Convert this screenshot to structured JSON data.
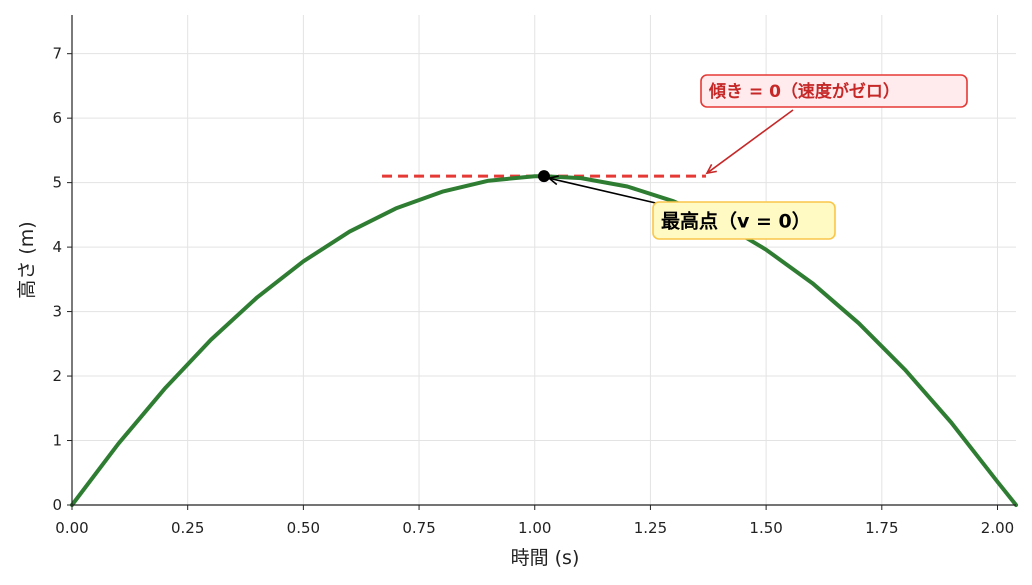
{
  "chart_data": {
    "type": "line",
    "xlabel": "時間 (s)",
    "ylabel": "高さ (m)",
    "xlim": [
      0,
      2.04
    ],
    "ylim": [
      0,
      7.6
    ],
    "xticks": [
      0.0,
      0.25,
      0.5,
      0.75,
      1.0,
      1.25,
      1.5,
      1.75,
      2.0
    ],
    "xtick_labels": [
      "0.00",
      "0.25",
      "0.50",
      "0.75",
      "1.00",
      "1.25",
      "1.50",
      "1.75",
      "2.00"
    ],
    "yticks": [
      0,
      1,
      2,
      3,
      4,
      5,
      6,
      7
    ],
    "ytick_labels": [
      "0",
      "1",
      "2",
      "3",
      "4",
      "5",
      "6",
      "7"
    ],
    "grid": true,
    "series": [
      {
        "color": "#2e7d32",
        "x": [
          0.0,
          0.1,
          0.2,
          0.3,
          0.4,
          0.5,
          0.6,
          0.7,
          0.8,
          0.9,
          1.0,
          1.02,
          1.1,
          1.2,
          1.3,
          1.4,
          1.5,
          1.6,
          1.7,
          1.8,
          1.9,
          2.0,
          2.04
        ],
        "y": [
          0.0,
          0.95,
          1.8,
          2.56,
          3.22,
          3.78,
          4.24,
          4.6,
          4.86,
          5.03,
          5.1,
          5.1,
          5.07,
          4.94,
          4.71,
          4.39,
          3.96,
          3.44,
          2.82,
          2.1,
          1.28,
          0.36,
          0.0
        ]
      }
    ],
    "peak": {
      "x": 1.02,
      "y": 5.1,
      "color": "#000000"
    },
    "tangent": {
      "x": [
        0.67,
        1.37
      ],
      "y": 5.1,
      "color": "#e53935"
    },
    "annotations": [
      {
        "text": "最高点（v = 0）",
        "text_color": "#000000",
        "fill": "#fff9c4",
        "border": "#f9c64a",
        "arrow_color": "#000000"
      },
      {
        "text": "傾き = 0（速度がゼロ）",
        "text_color": "#c62828",
        "fill": "#ffebee",
        "border": "#e53935",
        "arrow_color": "#c62828"
      }
    ]
  }
}
